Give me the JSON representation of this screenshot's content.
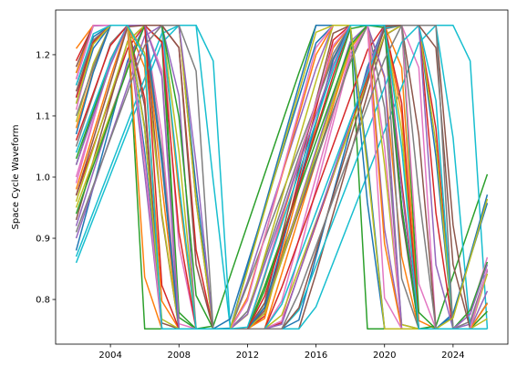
{
  "chart_data": {
    "type": "line",
    "ylabel": "Space Cycle Waveform",
    "xlabel": "",
    "title": "",
    "xlim": [
      2000.8,
      2027.2
    ],
    "ylim": [
      0.727,
      1.273
    ],
    "x_ticks": [
      2004,
      2008,
      2012,
      2016,
      2020,
      2024
    ],
    "x_tick_labels": [
      "2004",
      "2008",
      "2012",
      "2016",
      "2020",
      "2024"
    ],
    "y_ticks": [
      0.8,
      0.9,
      1.0,
      1.1,
      1.2
    ],
    "y_tick_labels": [
      "0.8",
      "0.9",
      "1.0",
      "1.1",
      "1.2"
    ],
    "grid": false,
    "legend": "none",
    "x": [
      2002,
      2003,
      2004,
      2005,
      2006,
      2007,
      2008,
      2009,
      2010,
      2011,
      2012,
      2013,
      2014,
      2015,
      2016,
      2017,
      2018,
      2019,
      2020,
      2021,
      2022,
      2023,
      2024,
      2025,
      2026
    ],
    "waveform": {
      "low": 0.752,
      "high": 1.248
    },
    "series": [
      {
        "color": "#1f77b4",
        "start": 0.88,
        "rise_years": 4.8,
        "period": 14.1,
        "fall_years": 1.0
      },
      {
        "color": "#ff7f0e",
        "start": 0.98,
        "rise_years": 5.4,
        "period": 13.5,
        "fall_years": 1.2
      },
      {
        "color": "#2ca02c",
        "start": 1.17,
        "rise_years": 6.0,
        "period": 13.0,
        "fall_years": 0.8
      },
      {
        "color": "#d62728",
        "start": 0.97,
        "rise_years": 6.2,
        "period": 14.6,
        "fall_years": 1.5
      },
      {
        "color": "#9467bd",
        "start": 1.16,
        "rise_years": 5.7,
        "period": 13.8,
        "fall_years": 1.1
      },
      {
        "color": "#8c564b",
        "start": 0.93,
        "rise_years": 5.1,
        "period": 14.9,
        "fall_years": 1.3
      },
      {
        "color": "#e377c2",
        "start": 1.11,
        "rise_years": 4.6,
        "period": 15.2,
        "fall_years": 0.9
      },
      {
        "color": "#7f7f7f",
        "start": 1.05,
        "rise_years": 5.9,
        "period": 13.2,
        "fall_years": 1.4
      },
      {
        "color": "#bcbd22",
        "start": 0.95,
        "rise_years": 6.5,
        "period": 14.3,
        "fall_years": 1.6
      },
      {
        "color": "#17becf",
        "start": 0.86,
        "rise_years": 6.9,
        "period": 15.0,
        "fall_years": 1.0
      },
      {
        "color": "#1f77b4",
        "start": 1.13,
        "rise_years": 5.0,
        "period": 12.8,
        "fall_years": 1.2
      },
      {
        "color": "#ff7f0e",
        "start": 1.08,
        "rise_years": 5.3,
        "period": 13.6,
        "fall_years": 1.7
      },
      {
        "color": "#2ca02c",
        "start": 1.03,
        "rise_years": 6.3,
        "period": 14.0,
        "fall_years": 0.9
      },
      {
        "color": "#d62728",
        "start": 1.19,
        "rise_years": 4.4,
        "period": 14.7,
        "fall_years": 1.1
      },
      {
        "color": "#9467bd",
        "start": 0.92,
        "rise_years": 5.6,
        "period": 12.6,
        "fall_years": 1.3
      },
      {
        "color": "#8c564b",
        "start": 1.14,
        "rise_years": 6.1,
        "period": 15.4,
        "fall_years": 1.5
      },
      {
        "color": "#e377c2",
        "start": 0.99,
        "rise_years": 4.9,
        "period": 13.9,
        "fall_years": 0.8
      },
      {
        "color": "#7f7f7f",
        "start": 1.15,
        "rise_years": 6.7,
        "period": 14.4,
        "fall_years": 1.2
      },
      {
        "color": "#bcbd22",
        "start": 1.09,
        "rise_years": 5.2,
        "period": 13.3,
        "fall_years": 1.9
      },
      {
        "color": "#17becf",
        "start": 0.87,
        "rise_years": 6.8,
        "period": 14.2,
        "fall_years": 1.4
      },
      {
        "color": "#1f77b4",
        "start": 1.12,
        "rise_years": 5.5,
        "period": 12.9,
        "fall_years": 1.0
      },
      {
        "color": "#ff7f0e",
        "start": 1.17,
        "rise_years": 4.7,
        "period": 14.8,
        "fall_years": 1.3
      },
      {
        "color": "#2ca02c",
        "start": 1.02,
        "rise_years": 5.8,
        "period": 13.4,
        "fall_years": 1.1
      },
      {
        "color": "#d62728",
        "start": 1.06,
        "rise_years": 6.4,
        "period": 15.1,
        "fall_years": 1.6
      },
      {
        "color": "#9467bd",
        "start": 0.9,
        "rise_years": 6.0,
        "period": 13.7,
        "fall_years": 0.9
      },
      {
        "color": "#8c564b",
        "start": 1.18,
        "rise_years": 4.5,
        "period": 14.5,
        "fall_years": 1.4
      },
      {
        "color": "#e377c2",
        "start": 1.0,
        "rise_years": 5.3,
        "period": 12.7,
        "fall_years": 1.2
      },
      {
        "color": "#7f7f7f",
        "start": 1.1,
        "rise_years": 6.2,
        "period": 14.9,
        "fall_years": 1.0
      },
      {
        "color": "#bcbd22",
        "start": 0.96,
        "rise_years": 5.7,
        "period": 13.1,
        "fall_years": 1.5
      },
      {
        "color": "#17becf",
        "start": 1.04,
        "rise_years": 6.6,
        "period": 15.3,
        "fall_years": 1.1
      },
      {
        "color": "#1f77b4",
        "start": 1.07,
        "rise_years": 4.9,
        "period": 13.8,
        "fall_years": 1.3
      },
      {
        "color": "#ff7f0e",
        "start": 1.21,
        "rise_years": 5.0,
        "period": 14.1,
        "fall_years": 0.9
      },
      {
        "color": "#2ca02c",
        "start": 0.94,
        "rise_years": 6.3,
        "period": 12.5,
        "fall_years": 1.7
      },
      {
        "color": "#d62728",
        "start": 1.13,
        "rise_years": 5.5,
        "period": 14.6,
        "fall_years": 1.0
      },
      {
        "color": "#9467bd",
        "start": 1.02,
        "rise_years": 6.1,
        "period": 13.0,
        "fall_years": 1.2
      },
      {
        "color": "#8c564b",
        "start": 0.97,
        "rise_years": 5.4,
        "period": 15.0,
        "fall_years": 1.4
      },
      {
        "color": "#e377c2",
        "start": 1.16,
        "rise_years": 4.8,
        "period": 13.5,
        "fall_years": 1.1
      },
      {
        "color": "#7f7f7f",
        "start": 0.91,
        "rise_years": 6.5,
        "period": 14.3,
        "fall_years": 0.8
      },
      {
        "color": "#bcbd22",
        "start": 1.12,
        "rise_years": 5.1,
        "period": 12.8,
        "fall_years": 1.6
      },
      {
        "color": "#17becf",
        "start": 1.15,
        "rise_years": 5.9,
        "period": 14.7,
        "fall_years": 1.0
      }
    ]
  }
}
